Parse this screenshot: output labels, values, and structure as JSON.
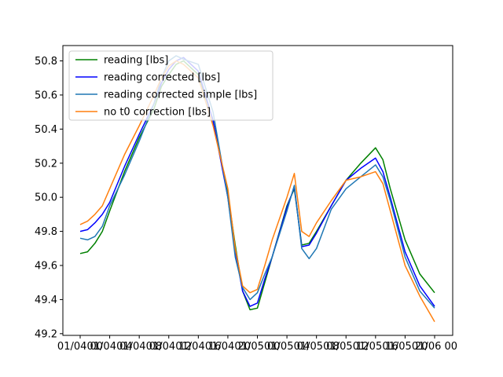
{
  "chart_data": {
    "type": "line",
    "title": "",
    "xlabel": "",
    "ylabel": "",
    "ylim": [
      49.19,
      50.89
    ],
    "grid": false,
    "legend_position": "upper-left",
    "x_tick_labels": [
      "01/04 00",
      "01/04 04",
      "01/04 08",
      "01/04 12",
      "01/04 16",
      "01/04 20",
      "01/05 00",
      "01/05 04",
      "01/05 08",
      "01/05 12",
      "01/05 16",
      "01/05 20",
      "01/06 00"
    ],
    "y_ticks": [
      49.2,
      49.4,
      49.6,
      49.8,
      50.0,
      50.2,
      50.4,
      50.6,
      50.8
    ],
    "y_tick_labels": [
      "49.2",
      "49.4",
      "49.6",
      "49.8",
      "50.0",
      "50.2",
      "50.4",
      "50.6",
      "50.8"
    ],
    "x": [
      "01/04 00",
      "01/04 01",
      "01/04 02",
      "01/04 03",
      "01/04 04",
      "01/04 06",
      "01/04 08",
      "01/04 10",
      "01/04 11",
      "01/04 12",
      "01/04 13",
      "01/04 14",
      "01/04 16",
      "01/04 18",
      "01/04 20",
      "01/04 21",
      "01/04 22",
      "01/04 23",
      "01/05 00",
      "01/05 01",
      "01/05 02",
      "01/05 04",
      "01/05 05",
      "01/05 06",
      "01/05 07",
      "01/05 08",
      "01/05 10",
      "01/05 12",
      "01/05 14",
      "01/05 16",
      "01/05 17",
      "01/05 18",
      "01/05 20",
      "01/05 22",
      "01/06 00"
    ],
    "series": [
      {
        "name": "reading [lbs]",
        "color": "#008000",
        "values": [
          49.67,
          49.68,
          49.73,
          49.8,
          49.92,
          50.15,
          50.35,
          50.52,
          50.65,
          50.72,
          50.78,
          50.8,
          50.72,
          50.45,
          50.02,
          49.72,
          49.45,
          49.34,
          49.35,
          49.5,
          49.65,
          49.95,
          50.05,
          49.72,
          49.73,
          49.8,
          49.95,
          50.1,
          50.2,
          50.29,
          50.22,
          50.05,
          49.75,
          49.55,
          49.44
        ]
      },
      {
        "name": "reading corrected [lbs]",
        "color": "#0000ff",
        "values": [
          49.8,
          49.81,
          49.85,
          49.9,
          49.97,
          50.18,
          50.37,
          50.55,
          50.67,
          50.75,
          50.8,
          50.82,
          50.74,
          50.45,
          50.0,
          49.68,
          49.45,
          49.36,
          49.38,
          49.52,
          49.65,
          49.94,
          50.06,
          49.71,
          49.72,
          49.79,
          49.95,
          50.1,
          50.17,
          50.23,
          50.15,
          50.0,
          49.68,
          49.48,
          49.36
        ]
      },
      {
        "name": "reading corrected simple [lbs]",
        "color": "#1f77b4",
        "values": [
          49.76,
          49.75,
          49.77,
          49.83,
          49.95,
          50.13,
          50.33,
          50.55,
          50.7,
          50.8,
          50.83,
          50.81,
          50.78,
          50.5,
          50.0,
          49.65,
          49.47,
          49.4,
          49.44,
          49.55,
          49.65,
          49.92,
          50.07,
          49.7,
          49.64,
          49.7,
          49.93,
          50.05,
          50.12,
          50.19,
          50.12,
          49.98,
          49.65,
          49.45,
          49.35
        ]
      },
      {
        "name": "no t0 correction [lbs]",
        "color": "#ff7f0e",
        "values": [
          49.84,
          49.86,
          49.9,
          49.95,
          50.05,
          50.25,
          50.42,
          50.6,
          50.7,
          50.77,
          50.8,
          50.78,
          50.7,
          50.42,
          50.05,
          49.7,
          49.48,
          49.44,
          49.46,
          49.6,
          49.75,
          50.0,
          50.14,
          49.8,
          49.77,
          49.85,
          49.98,
          50.1,
          50.12,
          50.15,
          50.08,
          49.92,
          49.6,
          49.42,
          49.27
        ]
      }
    ]
  }
}
